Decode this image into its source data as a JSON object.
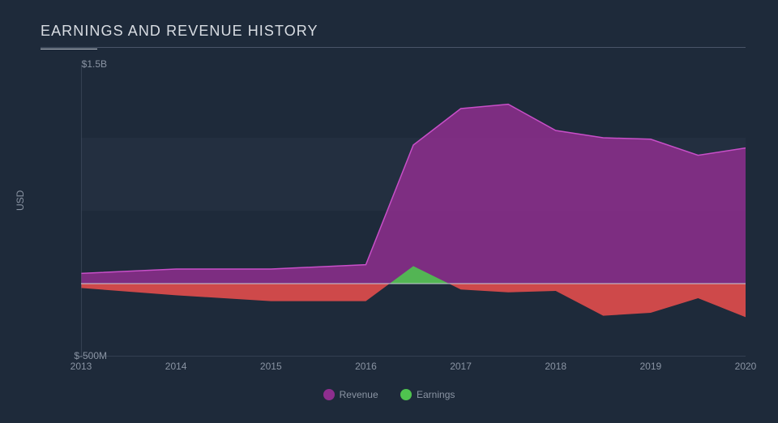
{
  "chart": {
    "type": "area",
    "title": "EARNINGS AND REVENUE HISTORY",
    "ylabel": "USD",
    "background_color": "#1e2a3a",
    "band_color": "#232f40",
    "band_y_range": [
      500,
      1000
    ],
    "grid_color": "#3a4657",
    "title_color": "#d9dde3",
    "text_color": "#8a94a3",
    "title_fontsize": 18,
    "label_fontsize": 12,
    "x_years": [
      2013,
      2014,
      2015,
      2016,
      2016.5,
      2017,
      2017.5,
      2018,
      2018.5,
      2019,
      2019.5,
      2020
    ],
    "xlim": [
      2013,
      2020
    ],
    "ylim": [
      -500,
      1500
    ],
    "yticks": [
      {
        "value": 1500,
        "label": "$1.5B"
      },
      {
        "value": -500,
        "label": "$-500M"
      }
    ],
    "xticks": [
      2013,
      2014,
      2015,
      2016,
      2017,
      2018,
      2019,
      2020
    ],
    "zero_line_color": "#c7cdd6",
    "series": [
      {
        "name": "Revenue",
        "fill_color": "#8e2e8e",
        "fill_opacity": 0.85,
        "stroke_color": "#c84fc8",
        "stroke_width": 1.5,
        "values_millions": [
          70,
          100,
          100,
          130,
          950,
          1200,
          1230,
          1050,
          1000,
          990,
          880,
          930
        ]
      },
      {
        "name": "Earnings",
        "fill_positive_color": "#4fc44f",
        "fill_negative_color": "#e14d4d",
        "fill_opacity": 0.9,
        "stroke_width": 0,
        "values_millions": [
          -30,
          -80,
          -120,
          -120,
          120,
          -40,
          -60,
          -50,
          -220,
          -200,
          -100,
          -230
        ]
      }
    ],
    "legend": [
      {
        "label": "Revenue",
        "color": "#8e2e8e"
      },
      {
        "label": "Earnings",
        "color": "#4fc44f"
      }
    ]
  }
}
